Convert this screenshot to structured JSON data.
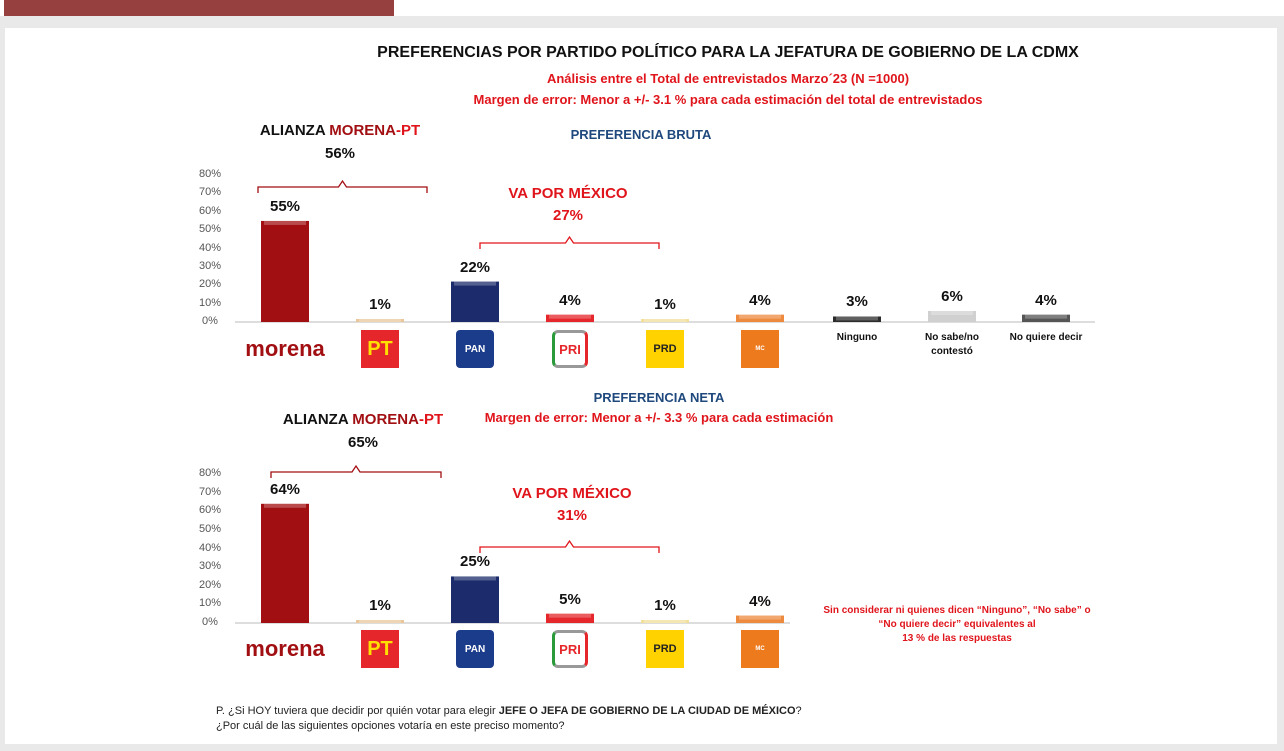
{
  "title": "PREFERENCIAS POR PARTIDO POLÍTICO PARA LA JEFATURA DE GOBIERNO DE LA CDMX",
  "subtitle1": "Análisis entre el Total de entrevistados Marzo´23  (N =1000)",
  "subtitle2": "Margen de error: Menor a +/- 3.1 %  para cada estimación del total de entrevistados",
  "chart_data": [
    {
      "type": "bar",
      "title": "PREFERENCIA BRUTA",
      "ylim": [
        0,
        80
      ],
      "yticks": [
        "0%",
        "10%",
        "20%",
        "30%",
        "40%",
        "50%",
        "60%",
        "70%",
        "80%"
      ],
      "categories": [
        "morena",
        "PT",
        "PAN",
        "PRI",
        "PRD",
        "Movimiento Ciudadano",
        "Ninguno",
        "No sabe/no contestó",
        "No quiere decir"
      ],
      "values": [
        55,
        1,
        22,
        4,
        1,
        4,
        3,
        6,
        4
      ],
      "labels": [
        "55%",
        "1%",
        "22%",
        "4%",
        "1%",
        "4%",
        "3%",
        "6%",
        "4%"
      ],
      "alliance1": {
        "prefix": "ALIANZA ",
        "morena": "MORENA",
        "pt": "-PT",
        "value": "56%"
      },
      "alliance2": {
        "name": "VA POR MÉXICO",
        "value": "27%"
      }
    },
    {
      "type": "bar",
      "title": "PREFERENCIA NETA",
      "subtitle": "Margen de error: Menor a +/- 3.3 %  para cada estimación",
      "ylim": [
        0,
        80
      ],
      "yticks": [
        "0%",
        "10%",
        "20%",
        "30%",
        "40%",
        "50%",
        "60%",
        "70%",
        "80%"
      ],
      "categories": [
        "morena",
        "PT",
        "PAN",
        "PRI",
        "PRD",
        "Movimiento Ciudadano"
      ],
      "values": [
        64,
        1,
        25,
        5,
        1,
        4
      ],
      "labels": [
        "64%",
        "1%",
        "25%",
        "5%",
        "1%",
        "4%"
      ],
      "alliance1": {
        "prefix": "ALIANZA ",
        "morena": "MORENA",
        "pt": "-PT",
        "value": "65%"
      },
      "alliance2": {
        "name": "VA POR MÉXICO",
        "value": "31%"
      },
      "note": [
        "Sin considerar  ni quienes dicen “Ninguno”, “No sabe” o",
        "“No quiere decir” equivalentes al",
        "13 % de las respuestas"
      ]
    }
  ],
  "colors": [
    "#a20f12",
    "#e9c79b",
    "#1b2b6b",
    "#e5262a",
    "#f2df9a",
    "#ee8a3e",
    "#2b2b2b",
    "#d0d0d0",
    "#555555"
  ],
  "logos": [
    "morena",
    "PT",
    "PAN",
    "PRI",
    "PRD",
    "MOVIMIENTO CIUDADANO"
  ],
  "question": {
    "prefix": "P. ¿Si HOY tuviera que decidir por quién votar para elegir ",
    "bold": "JEFE O JEFA DE GOBIERNO DE LA CIUDAD DE MÉXICO",
    "suffix": "?",
    "line2": "¿Por cuál de las siguientes opciones votaría en este preciso momento?"
  }
}
